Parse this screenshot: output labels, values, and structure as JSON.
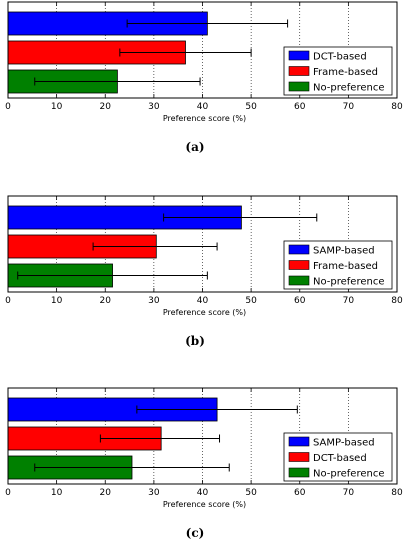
{
  "figure": {
    "panels": [
      "(a)",
      "(b)",
      "(c)"
    ]
  },
  "chart_data": [
    {
      "type": "bar",
      "orientation": "horizontal",
      "caption": "(a)",
      "xlabel": "Preference score (%)",
      "ylabel": "",
      "xlim": [
        0,
        80
      ],
      "xticks": [
        "0",
        "10",
        "20",
        "30",
        "40",
        "50",
        "60",
        "70",
        "80"
      ],
      "grid": "vertical dotted",
      "legend_position": "lower-right",
      "bars": [
        {
          "label": "DCT-based",
          "value": 41,
          "error_low": 24.5,
          "error_high": 57.5,
          "color": "#0000ff"
        },
        {
          "label": "Frame-based",
          "value": 36.5,
          "error_low": 23,
          "error_high": 50,
          "color": "#ff0000"
        },
        {
          "label": "No-preference",
          "value": 22.5,
          "error_low": 5.5,
          "error_high": 39.5,
          "color": "#008000"
        }
      ]
    },
    {
      "type": "bar",
      "orientation": "horizontal",
      "caption": "(b)",
      "xlabel": "Preference score (%)",
      "ylabel": "",
      "xlim": [
        0,
        80
      ],
      "xticks": [
        "0",
        "10",
        "20",
        "30",
        "40",
        "50",
        "60",
        "70",
        "80"
      ],
      "grid": "vertical dotted",
      "legend_position": "lower-right",
      "bars": [
        {
          "label": "SAMP-based",
          "value": 48,
          "error_low": 32,
          "error_high": 63.5,
          "color": "#0000ff"
        },
        {
          "label": "Frame-based",
          "value": 30.5,
          "error_low": 17.5,
          "error_high": 43,
          "color": "#ff0000"
        },
        {
          "label": "No-preference",
          "value": 21.5,
          "error_low": 2,
          "error_high": 41,
          "color": "#008000"
        }
      ]
    },
    {
      "type": "bar",
      "orientation": "horizontal",
      "caption": "(c)",
      "xlabel": "Preference score (%)",
      "ylabel": "",
      "xlim": [
        0,
        80
      ],
      "xticks": [
        "0",
        "10",
        "20",
        "30",
        "40",
        "50",
        "60",
        "70",
        "80"
      ],
      "grid": "vertical dotted",
      "legend_position": "lower-right",
      "bars": [
        {
          "label": "SAMP-based",
          "value": 43,
          "error_low": 26.5,
          "error_high": 59.5,
          "color": "#0000ff"
        },
        {
          "label": "DCT-based",
          "value": 31.5,
          "error_low": 19,
          "error_high": 43.5,
          "color": "#ff0000"
        },
        {
          "label": "No-preference",
          "value": 25.5,
          "error_low": 5.5,
          "error_high": 45.5,
          "color": "#008000"
        }
      ]
    }
  ]
}
